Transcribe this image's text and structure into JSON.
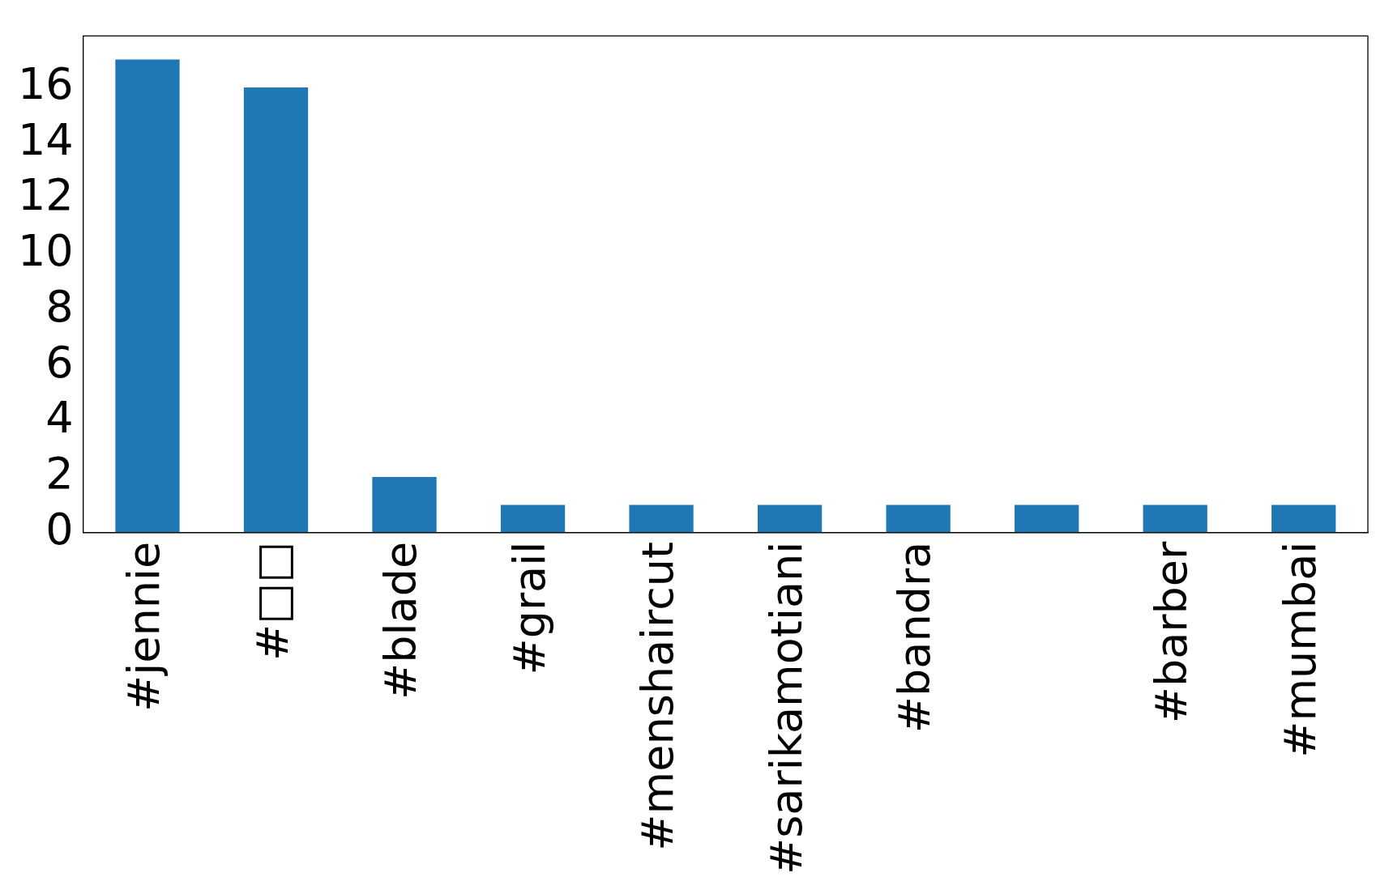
{
  "chart_data": {
    "type": "bar",
    "categories": [
      "#jennie",
      "#□□",
      "#blade",
      "#grail",
      "#menshaircut",
      "#sarikamotiani",
      "#bandra",
      null,
      "#barber",
      "#mumbai"
    ],
    "values": [
      17,
      16,
      2,
      1,
      1,
      1,
      1,
      1,
      1,
      1
    ],
    "color": "#1f77b4",
    "ylim": [
      0,
      17.85
    ],
    "yticks": [
      0,
      2,
      4,
      6,
      8,
      10,
      12,
      14,
      16
    ],
    "grid": false,
    "legend": false
  }
}
